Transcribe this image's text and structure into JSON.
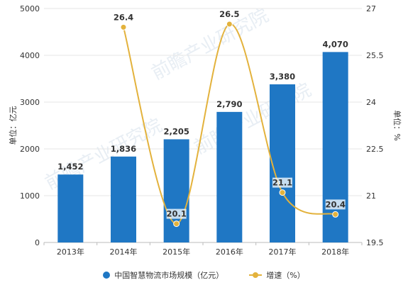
{
  "chart_data": {
    "type": "bar+line",
    "categories": [
      "2013年",
      "2014年",
      "2015年",
      "2016年",
      "2017年",
      "2018年"
    ],
    "series": [
      {
        "name": "中国智慧物流市场规模（亿元）",
        "kind": "bar",
        "axis": "left",
        "color": "#1f77c4",
        "values": [
          1452,
          1836,
          2205,
          2790,
          3380,
          4070
        ],
        "value_labels": [
          "1,452",
          "1,836",
          "2,205",
          "2,790",
          "3,380",
          "4,070"
        ]
      },
      {
        "name": "增速（%）",
        "kind": "line",
        "axis": "right",
        "color": "#e3b23c",
        "values": [
          null,
          26.4,
          20.1,
          26.5,
          21.1,
          20.4
        ],
        "value_labels": [
          "",
          "26.4",
          "20.1",
          "26.5",
          "21.1",
          "20.4"
        ]
      }
    ],
    "y_left": {
      "label": "单位：亿元",
      "ylim": [
        0,
        5000
      ],
      "ticks": [
        0,
        1000,
        2000,
        3000,
        4000,
        5000
      ],
      "tick_labels": [
        "0",
        "1000",
        "2000",
        "3000",
        "4000",
        "5000"
      ]
    },
    "y_right": {
      "label": "单位：%",
      "ylim": [
        19.5,
        27
      ],
      "ticks": [
        19.5,
        21,
        22.5,
        24,
        25.5,
        27
      ],
      "tick_labels": [
        "19.5",
        "21",
        "22.5",
        "24",
        "25.5",
        "27"
      ]
    },
    "grid": true,
    "legend_position": "bottom",
    "watermark": "前瞻产业研究院"
  }
}
